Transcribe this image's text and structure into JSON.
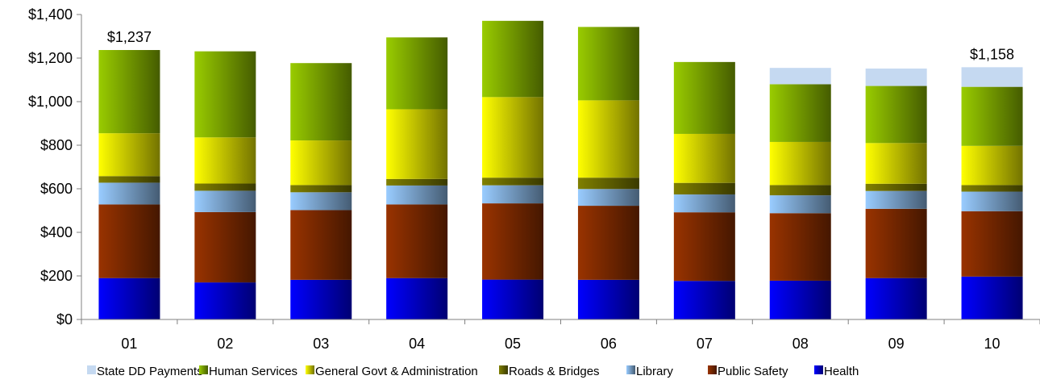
{
  "chart_data": {
    "type": "bar",
    "stacked": true,
    "title": "",
    "xlabel": "",
    "ylabel": "",
    "ylim": [
      0,
      1400
    ],
    "ytick_step": 200,
    "ytick_labels": [
      "$0",
      "$200",
      "$400",
      "$600",
      "$800",
      "$1,000",
      "$1,200",
      "$1,400"
    ],
    "grid": false,
    "legend_position": "bottom",
    "categories": [
      "01",
      "02",
      "03",
      "04",
      "05",
      "06",
      "07",
      "08",
      "09",
      "10"
    ],
    "series": [
      {
        "name": "Health",
        "color": "#0000ff",
        "values": [
          190,
          170,
          182,
          190,
          183,
          182,
          177,
          178,
          190,
          197
        ]
      },
      {
        "name": "Public Safety",
        "color": "#993300",
        "values": [
          338,
          323,
          320,
          338,
          350,
          340,
          315,
          310,
          318,
          300
        ]
      },
      {
        "name": "Library",
        "color": "#99ccff",
        "values": [
          100,
          98,
          82,
          87,
          83,
          77,
          82,
          82,
          82,
          90
        ]
      },
      {
        "name": "Roads & Bridges",
        "color": "#808000",
        "values": [
          30,
          33,
          33,
          30,
          35,
          52,
          53,
          47,
          33,
          30
        ]
      },
      {
        "name": "General Govt & Administration",
        "color": "#ffff00",
        "values": [
          197,
          212,
          205,
          320,
          370,
          355,
          225,
          198,
          187,
          180
        ]
      },
      {
        "name": "Human Services",
        "color": "#99cc00",
        "values": [
          382,
          395,
          355,
          330,
          350,
          337,
          330,
          265,
          262,
          271
        ]
      },
      {
        "name": "State DD Payments",
        "color": "#c5d9f1",
        "values": [
          0,
          0,
          0,
          0,
          0,
          0,
          0,
          75,
          80,
          90
        ]
      }
    ],
    "legend_order": [
      "State DD Payments",
      "Human Services",
      "General Govt & Administration",
      "Roads & Bridges",
      "Library",
      "Public Safety",
      "Health"
    ],
    "annotations": [
      {
        "category": "01",
        "text": "$1,237"
      },
      {
        "category": "10",
        "text": "$1,158"
      }
    ]
  }
}
